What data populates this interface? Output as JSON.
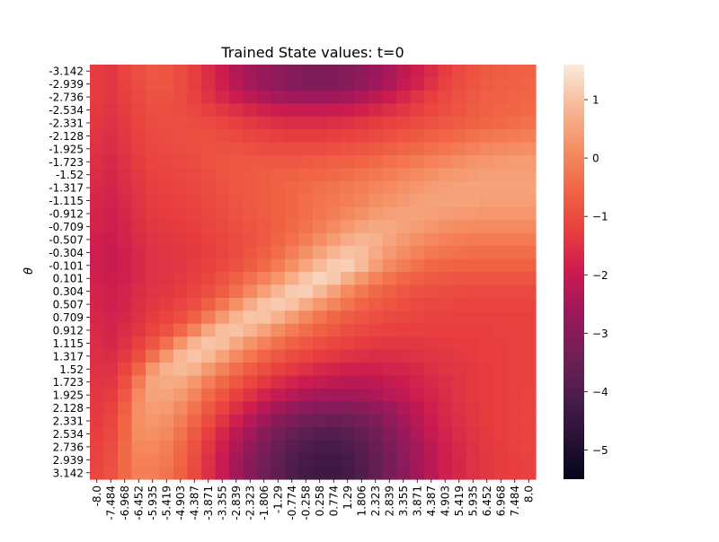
{
  "chart_data": {
    "type": "heatmap",
    "title": "Trained State values: t=0",
    "xlabel": "",
    "ylabel": "θ",
    "x_ticks": [
      "-8.0",
      "-7.484",
      "-6.968",
      "-6.452",
      "-5.935",
      "-5.419",
      "-4.903",
      "-4.387",
      "-3.871",
      "-3.355",
      "-2.839",
      "-2.323",
      "-1.806",
      "-1.29",
      "-0.774",
      "-0.258",
      "0.258",
      "0.774",
      "1.29",
      "1.806",
      "2.323",
      "2.839",
      "3.355",
      "3.871",
      "4.387",
      "4.903",
      "5.419",
      "5.935",
      "6.452",
      "6.968",
      "7.484",
      "8.0"
    ],
    "y_ticks": [
      "-3.142",
      "-2.939",
      "-2.736",
      "-2.534",
      "-2.331",
      "-2.128",
      "-1.925",
      "-1.723",
      "-1.52",
      "-1.317",
      "-1.115",
      "-0.912",
      "-0.709",
      "-0.507",
      "-0.304",
      "-0.101",
      "0.101",
      "0.304",
      "0.507",
      "0.709",
      "0.912",
      "1.115",
      "1.317",
      "1.52",
      "1.723",
      "1.925",
      "2.128",
      "2.331",
      "2.534",
      "2.736",
      "2.939",
      "3.142"
    ],
    "colorbar": {
      "ticks": [
        1,
        0,
        -1,
        -2,
        -3,
        -4,
        -5
      ],
      "vmin": -5.5,
      "vmax": 1.6,
      "colormap": "rocket"
    },
    "values_description": "approximate reconstruction",
    "values": [
      [
        -1.3,
        -1.4,
        -1.15,
        -0.95,
        -0.8,
        -0.85,
        -1.0,
        -1.25,
        -1.6,
        -1.95,
        -2.3,
        -2.55,
        -2.75,
        -2.9,
        -3.05,
        -3.15,
        -3.2,
        -3.15,
        -3.05,
        -2.9,
        -2.7,
        -2.45,
        -2.15,
        -1.9,
        -1.6,
        -1.3,
        -1.05,
        -0.9,
        -0.75,
        -0.7,
        -0.65,
        -0.6
      ],
      [
        -1.3,
        -1.4,
        -1.2,
        -1.0,
        -0.85,
        -0.85,
        -1.0,
        -1.25,
        -1.55,
        -1.9,
        -2.2,
        -2.5,
        -2.7,
        -2.85,
        -3.0,
        -3.1,
        -3.15,
        -3.1,
        -3.0,
        -2.85,
        -2.6,
        -2.35,
        -2.05,
        -1.8,
        -1.5,
        -1.2,
        -1.0,
        -0.85,
        -0.7,
        -0.65,
        -0.6,
        -0.55
      ],
      [
        -1.3,
        -1.4,
        -1.25,
        -1.05,
        -0.9,
        -0.9,
        -1.0,
        -1.2,
        -1.45,
        -1.7,
        -1.95,
        -2.15,
        -2.35,
        -2.5,
        -2.6,
        -2.65,
        -2.65,
        -2.6,
        -2.5,
        -2.35,
        -2.15,
        -1.95,
        -1.7,
        -1.45,
        -1.25,
        -1.05,
        -0.9,
        -0.75,
        -0.65,
        -0.6,
        -0.55,
        -0.5
      ],
      [
        -1.35,
        -1.45,
        -1.3,
        -1.1,
        -0.95,
        -0.95,
        -1.0,
        -1.1,
        -1.25,
        -1.4,
        -1.55,
        -1.7,
        -1.85,
        -1.95,
        -2.0,
        -2.05,
        -2.05,
        -2.0,
        -1.95,
        -1.85,
        -1.7,
        -1.55,
        -1.4,
        -1.25,
        -1.1,
        -0.95,
        -0.85,
        -0.7,
        -0.6,
        -0.55,
        -0.5,
        -0.45
      ],
      [
        -1.4,
        -1.5,
        -1.35,
        -1.15,
        -1.0,
        -0.95,
        -0.95,
        -1.0,
        -1.05,
        -1.15,
        -1.25,
        -1.35,
        -1.45,
        -1.55,
        -1.6,
        -1.6,
        -1.6,
        -1.55,
        -1.5,
        -1.4,
        -1.3,
        -1.2,
        -1.1,
        -1.0,
        -0.9,
        -0.8,
        -0.7,
        -0.6,
        -0.5,
        -0.45,
        -0.4,
        -0.35
      ],
      [
        -1.45,
        -1.55,
        -1.4,
        -1.2,
        -1.05,
        -1.0,
        -0.95,
        -0.95,
        -0.95,
        -1.0,
        -1.05,
        -1.15,
        -1.2,
        -1.25,
        -1.3,
        -1.3,
        -1.3,
        -1.25,
        -1.2,
        -1.15,
        -1.05,
        -0.95,
        -0.85,
        -0.75,
        -0.65,
        -0.55,
        -0.45,
        -0.35,
        -0.25,
        -0.2,
        -0.15,
        -0.1
      ],
      [
        -1.5,
        -1.6,
        -1.45,
        -1.25,
        -1.1,
        -1.05,
        -1.0,
        -0.95,
        -0.9,
        -0.9,
        -0.9,
        -0.95,
        -1.0,
        -1.0,
        -1.0,
        -1.0,
        -1.0,
        -0.95,
        -0.9,
        -0.85,
        -0.75,
        -0.65,
        -0.55,
        -0.45,
        -0.35,
        -0.25,
        -0.15,
        -0.05,
        0.05,
        0.1,
        0.15,
        0.2
      ],
      [
        -1.55,
        -1.65,
        -1.5,
        -1.3,
        -1.15,
        -1.1,
        -1.05,
        -1.0,
        -0.9,
        -0.85,
        -0.8,
        -0.8,
        -0.8,
        -0.8,
        -0.8,
        -0.75,
        -0.7,
        -0.65,
        -0.6,
        -0.55,
        -0.45,
        -0.35,
        -0.25,
        -0.15,
        -0.05,
        0.05,
        0.15,
        0.25,
        0.3,
        0.35,
        0.4,
        0.4
      ],
      [
        -1.6,
        -1.7,
        -1.55,
        -1.35,
        -1.2,
        -1.15,
        -1.1,
        -1.05,
        -0.95,
        -0.85,
        -0.8,
        -0.75,
        -0.7,
        -0.65,
        -0.6,
        -0.55,
        -0.5,
        -0.45,
        -0.4,
        -0.3,
        -0.2,
        -0.1,
        0.0,
        0.1,
        0.2,
        0.3,
        0.35,
        0.4,
        0.45,
        0.45,
        0.45,
        0.45
      ],
      [
        -1.65,
        -1.75,
        -1.6,
        -1.4,
        -1.25,
        -1.2,
        -1.15,
        -1.1,
        -1.0,
        -0.9,
        -0.8,
        -0.75,
        -0.7,
        -0.6,
        -0.5,
        -0.45,
        -0.35,
        -0.3,
        -0.2,
        -0.1,
        0.0,
        0.1,
        0.2,
        0.3,
        0.4,
        0.45,
        0.5,
        0.5,
        0.5,
        0.5,
        0.5,
        0.5
      ],
      [
        -1.7,
        -1.8,
        -1.65,
        -1.45,
        -1.3,
        -1.25,
        -1.2,
        -1.15,
        -1.05,
        -0.95,
        -0.85,
        -0.75,
        -0.7,
        -0.6,
        -0.5,
        -0.4,
        -0.3,
        -0.2,
        -0.1,
        0.0,
        0.15,
        0.25,
        0.35,
        0.45,
        0.5,
        0.5,
        0.5,
        0.5,
        0.45,
        0.45,
        0.45,
        0.45
      ],
      [
        -1.75,
        -1.85,
        -1.7,
        -1.5,
        -1.35,
        -1.3,
        -1.25,
        -1.2,
        -1.1,
        -1.0,
        -0.9,
        -0.8,
        -0.7,
        -0.6,
        -0.5,
        -0.4,
        -0.25,
        -0.1,
        0.05,
        0.2,
        0.35,
        0.45,
        0.5,
        0.5,
        0.45,
        0.4,
        0.35,
        0.35,
        0.3,
        0.3,
        0.3,
        0.3
      ],
      [
        -1.8,
        -1.9,
        -1.75,
        -1.55,
        -1.4,
        -1.35,
        -1.3,
        -1.25,
        -1.15,
        -1.05,
        -0.95,
        -0.85,
        -0.75,
        -0.6,
        -0.45,
        -0.3,
        -0.1,
        0.1,
        0.3,
        0.5,
        0.6,
        0.6,
        0.5,
        0.4,
        0.3,
        0.2,
        0.15,
        0.1,
        0.1,
        0.1,
        0.1,
        0.1
      ],
      [
        -1.85,
        -1.95,
        -1.8,
        -1.6,
        -1.45,
        -1.4,
        -1.35,
        -1.3,
        -1.2,
        -1.1,
        -1.0,
        -0.9,
        -0.75,
        -0.55,
        -0.35,
        -0.1,
        0.15,
        0.4,
        0.65,
        0.8,
        0.75,
        0.55,
        0.35,
        0.2,
        0.05,
        -0.05,
        -0.1,
        -0.15,
        -0.15,
        -0.15,
        -0.15,
        -0.15
      ],
      [
        -1.9,
        -2.0,
        -1.85,
        -1.65,
        -1.5,
        -1.45,
        -1.4,
        -1.35,
        -1.25,
        -1.15,
        -1.0,
        -0.85,
        -0.65,
        -0.4,
        -0.1,
        0.2,
        0.5,
        0.8,
        1.0,
        0.95,
        0.65,
        0.35,
        0.15,
        -0.05,
        -0.2,
        -0.3,
        -0.35,
        -0.4,
        -0.4,
        -0.4,
        -0.4,
        -0.4
      ],
      [
        -1.9,
        -2.0,
        -1.85,
        -1.65,
        -1.5,
        -1.45,
        -1.4,
        -1.3,
        -1.2,
        -1.05,
        -0.9,
        -0.7,
        -0.45,
        -0.15,
        0.2,
        0.55,
        0.9,
        1.15,
        1.2,
        0.9,
        0.45,
        0.1,
        -0.15,
        -0.35,
        -0.5,
        -0.55,
        -0.6,
        -0.6,
        -0.6,
        -0.6,
        -0.6,
        -0.6
      ],
      [
        -1.85,
        -1.95,
        -1.85,
        -1.65,
        -1.5,
        -1.45,
        -1.35,
        -1.25,
        -1.1,
        -0.9,
        -0.65,
        -0.35,
        -0.05,
        0.3,
        0.7,
        1.05,
        1.25,
        1.1,
        0.7,
        0.3,
        -0.05,
        -0.3,
        -0.5,
        -0.65,
        -0.75,
        -0.8,
        -0.85,
        -0.85,
        -0.85,
        -0.85,
        -0.85,
        -0.85
      ],
      [
        -1.8,
        -1.9,
        -1.8,
        -1.6,
        -1.45,
        -1.4,
        -1.3,
        -1.15,
        -0.95,
        -0.7,
        -0.35,
        0.05,
        0.45,
        0.85,
        1.15,
        1.2,
        0.9,
        0.5,
        0.1,
        -0.2,
        -0.45,
        -0.65,
        -0.8,
        -0.9,
        -0.95,
        -1.0,
        -1.0,
        -1.05,
        -1.05,
        -1.05,
        -1.05,
        -1.05
      ],
      [
        -1.75,
        -1.85,
        -1.75,
        -1.55,
        -1.4,
        -1.3,
        -1.15,
        -0.95,
        -0.65,
        -0.25,
        0.2,
        0.65,
        1.0,
        1.15,
        1.0,
        0.65,
        0.3,
        0.0,
        -0.3,
        -0.55,
        -0.7,
        -0.85,
        -0.95,
        -1.05,
        -1.1,
        -1.1,
        -1.15,
        -1.15,
        -1.15,
        -1.15,
        -1.15,
        -1.15
      ],
      [
        -1.7,
        -1.8,
        -1.7,
        -1.5,
        -1.3,
        -1.15,
        -0.95,
        -0.6,
        -0.15,
        0.35,
        0.8,
        1.05,
        1.0,
        0.75,
        0.4,
        0.05,
        -0.25,
        -0.5,
        -0.7,
        -0.85,
        -0.95,
        -1.05,
        -1.1,
        -1.15,
        -1.2,
        -1.2,
        -1.2,
        -1.2,
        -1.2,
        -1.2,
        -1.2,
        -1.2
      ],
      [
        -1.65,
        -1.75,
        -1.6,
        -1.4,
        -1.15,
        -0.9,
        -0.5,
        0.0,
        0.55,
        0.95,
        1.0,
        0.8,
        0.5,
        0.15,
        -0.15,
        -0.4,
        -0.6,
        -0.8,
        -0.95,
        -1.05,
        -1.15,
        -1.2,
        -1.25,
        -1.25,
        -1.25,
        -1.25,
        -1.25,
        -1.25,
        -1.25,
        -1.2,
        -1.2,
        -1.2
      ],
      [
        -1.6,
        -1.7,
        -1.5,
        -1.2,
        -0.85,
        -0.35,
        0.25,
        0.8,
        1.05,
        0.95,
        0.6,
        0.25,
        -0.05,
        -0.35,
        -0.6,
        -0.8,
        -0.95,
        -1.1,
        -1.2,
        -1.3,
        -1.35,
        -1.4,
        -1.4,
        -1.4,
        -1.35,
        -1.35,
        -1.3,
        -1.3,
        -1.25,
        -1.25,
        -1.2,
        -1.2
      ],
      [
        -1.55,
        -1.6,
        -1.35,
        -0.95,
        -0.35,
        0.3,
        0.85,
        1.05,
        0.9,
        0.5,
        0.1,
        -0.25,
        -0.55,
        -0.8,
        -1.0,
        -1.15,
        -1.3,
        -1.4,
        -1.5,
        -1.55,
        -1.6,
        -1.6,
        -1.55,
        -1.5,
        -1.45,
        -1.4,
        -1.35,
        -1.3,
        -1.25,
        -1.25,
        -1.2,
        -1.2
      ],
      [
        -1.5,
        -1.5,
        -1.15,
        -0.55,
        0.3,
        0.75,
        0.9,
        0.75,
        0.35,
        -0.05,
        -0.4,
        -0.7,
        -0.95,
        -1.2,
        -1.35,
        -1.5,
        -1.65,
        -1.75,
        -1.85,
        -1.85,
        -1.85,
        -1.8,
        -1.75,
        -1.65,
        -1.55,
        -1.45,
        -1.4,
        -1.35,
        -1.3,
        -1.25,
        -1.2,
        -1.2
      ],
      [
        -1.45,
        -1.4,
        -0.95,
        -0.15,
        0.55,
        0.65,
        0.6,
        0.3,
        -0.1,
        -0.45,
        -0.8,
        -1.1,
        -1.35,
        -1.6,
        -1.8,
        -1.95,
        -2.05,
        -2.15,
        -2.2,
        -2.2,
        -2.15,
        -2.05,
        -1.95,
        -1.8,
        -1.65,
        -1.55,
        -1.45,
        -1.35,
        -1.3,
        -1.25,
        -1.2,
        -1.2
      ],
      [
        -1.4,
        -1.3,
        -0.8,
        0.1,
        0.5,
        0.5,
        0.35,
        0.0,
        -0.45,
        -0.85,
        -1.2,
        -1.5,
        -1.8,
        -2.05,
        -2.25,
        -2.4,
        -2.5,
        -2.55,
        -2.55,
        -2.5,
        -2.4,
        -2.25,
        -2.1,
        -1.9,
        -1.75,
        -1.6,
        -1.45,
        -1.35,
        -1.3,
        -1.25,
        -1.2,
        -1.15
      ],
      [
        -1.35,
        -1.2,
        -0.65,
        0.2,
        0.4,
        0.35,
        0.1,
        -0.3,
        -0.75,
        -1.15,
        -1.55,
        -1.9,
        -2.2,
        -2.5,
        -2.75,
        -2.9,
        -3.0,
        -3.05,
        -3.05,
        -2.95,
        -2.8,
        -2.6,
        -2.35,
        -2.1,
        -1.85,
        -1.65,
        -1.5,
        -1.4,
        -1.3,
        -1.25,
        -1.2,
        -1.15
      ],
      [
        -1.3,
        -1.1,
        -0.55,
        0.2,
        0.3,
        0.2,
        -0.1,
        -0.55,
        -1.0,
        -1.45,
        -1.85,
        -2.25,
        -2.6,
        -2.95,
        -3.2,
        -3.4,
        -3.5,
        -3.55,
        -3.5,
        -3.35,
        -3.15,
        -2.85,
        -2.55,
        -2.25,
        -1.95,
        -1.7,
        -1.55,
        -1.4,
        -1.3,
        -1.25,
        -1.2,
        -1.15
      ],
      [
        -1.25,
        -1.05,
        -0.5,
        0.15,
        0.2,
        0.05,
        -0.3,
        -0.75,
        -1.25,
        -1.7,
        -2.15,
        -2.55,
        -2.95,
        -3.3,
        -3.6,
        -3.8,
        -3.9,
        -3.95,
        -3.85,
        -3.65,
        -3.4,
        -3.05,
        -2.7,
        -2.35,
        -2.05,
        -1.8,
        -1.6,
        -1.45,
        -1.35,
        -1.25,
        -1.2,
        -1.15
      ],
      [
        -1.2,
        -1.0,
        -0.45,
        0.05,
        0.05,
        -0.1,
        -0.45,
        -0.9,
        -1.4,
        -1.9,
        -2.35,
        -2.8,
        -3.2,
        -3.55,
        -3.85,
        -4.05,
        -4.15,
        -4.15,
        -4.05,
        -3.85,
        -3.55,
        -3.2,
        -2.85,
        -2.5,
        -2.15,
        -1.85,
        -1.65,
        -1.5,
        -1.35,
        -1.3,
        -1.2,
        -1.15
      ],
      [
        -1.15,
        -0.95,
        -0.45,
        -0.05,
        -0.05,
        -0.2,
        -0.55,
        -1.0,
        -1.5,
        -2.0,
        -2.5,
        -2.95,
        -3.35,
        -3.7,
        -4.0,
        -4.2,
        -4.3,
        -4.3,
        -4.2,
        -3.95,
        -3.65,
        -3.3,
        -2.9,
        -2.55,
        -2.2,
        -1.9,
        -1.7,
        -1.5,
        -1.4,
        -1.3,
        -1.25,
        -1.2
      ],
      [
        -1.1,
        -0.9,
        -0.45,
        -0.1,
        -0.1,
        -0.3,
        -0.6,
        -1.05,
        -1.55,
        -2.05,
        -2.55,
        -3.0,
        -3.4,
        -3.75,
        -4.05,
        -4.25,
        -4.35,
        -4.35,
        -4.25,
        -4.0,
        -3.7,
        -3.3,
        -2.95,
        -2.55,
        -2.2,
        -1.9,
        -1.7,
        -1.5,
        -1.4,
        -1.3,
        -1.25,
        -1.2
      ]
    ]
  }
}
